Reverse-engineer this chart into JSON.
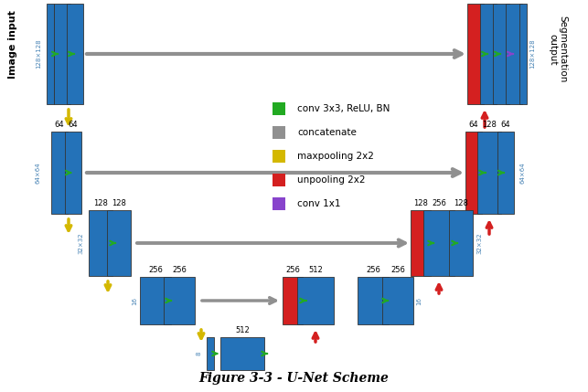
{
  "bg": "#ffffff",
  "blue": "#2472b8",
  "red": "#d42020",
  "gray": "#909090",
  "green": "#22aa22",
  "yellow": "#d4b800",
  "purple": "#8844cc",
  "title": "Figure 3-3 - U-Net Scheme",
  "legend": [
    {
      "label": "conv 3x3, ReLU, BN",
      "color": "#22aa22"
    },
    {
      "label": "concatenate",
      "color": "#909090"
    },
    {
      "label": "maxpooling 2x2",
      "color": "#d4b800"
    },
    {
      "label": "unpooling 2x2",
      "color": "#d42020"
    },
    {
      "label": "conv 1x1",
      "color": "#8844cc"
    }
  ]
}
